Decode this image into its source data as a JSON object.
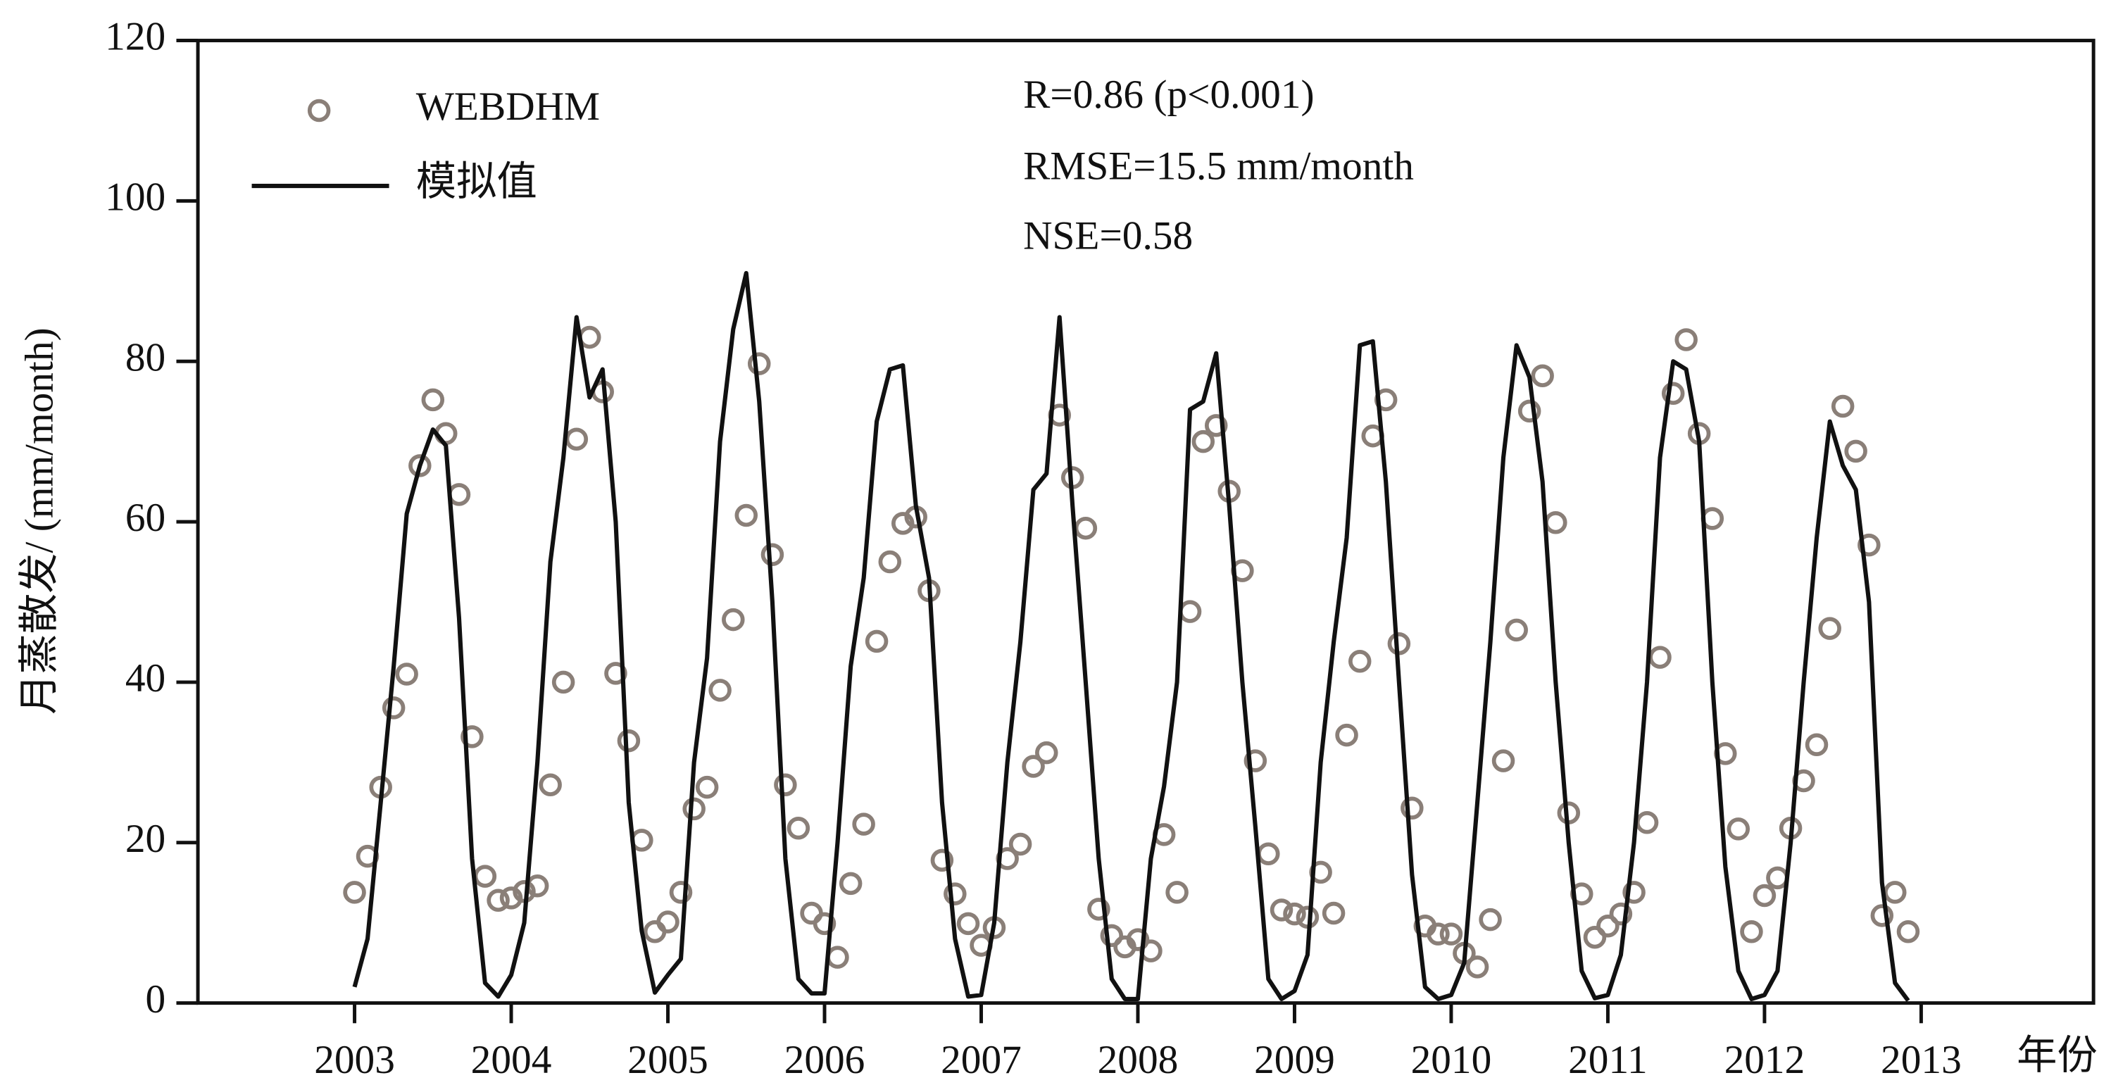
{
  "chart_data": {
    "type": "scatter",
    "ylabel": "月蒸散发/ (mm/month)",
    "xlabel": "年份",
    "annotations": [
      "R=0.86 (p<0.001)",
      "RMSE=15.5 mm/month",
      "NSE=0.58"
    ],
    "xlim": [
      2002,
      2014.1
    ],
    "xticks": [
      2003,
      2004,
      2005,
      2006,
      2007,
      2008,
      2009,
      2010,
      2011,
      2012,
      2013
    ],
    "ylim": [
      0,
      120
    ],
    "yticks": [
      0,
      20,
      40,
      60,
      80,
      100,
      120
    ],
    "legend": "upper left",
    "x": [
      2003,
      2003.083,
      2003.167,
      2003.25,
      2003.333,
      2003.417,
      2003.5,
      2003.583,
      2003.667,
      2003.75,
      2003.833,
      2003.917,
      2004,
      2004.083,
      2004.167,
      2004.25,
      2004.333,
      2004.417,
      2004.5,
      2004.583,
      2004.667,
      2004.75,
      2004.833,
      2004.917,
      2005,
      2005.083,
      2005.167,
      2005.25,
      2005.333,
      2005.417,
      2005.5,
      2005.583,
      2005.667,
      2005.75,
      2005.833,
      2005.917,
      2006,
      2006.083,
      2006.167,
      2006.25,
      2006.333,
      2006.417,
      2006.5,
      2006.583,
      2006.667,
      2006.75,
      2006.833,
      2006.917,
      2007,
      2007.083,
      2007.167,
      2007.25,
      2007.333,
      2007.417,
      2007.5,
      2007.583,
      2007.667,
      2007.75,
      2007.833,
      2007.917,
      2008,
      2008.083,
      2008.167,
      2008.25,
      2008.333,
      2008.417,
      2008.5,
      2008.583,
      2008.667,
      2008.75,
      2008.833,
      2008.917,
      2009,
      2009.083,
      2009.167,
      2009.25,
      2009.333,
      2009.417,
      2009.5,
      2009.583,
      2009.667,
      2009.75,
      2009.833,
      2009.917,
      2010,
      2010.083,
      2010.167,
      2010.25,
      2010.333,
      2010.417,
      2010.5,
      2010.583,
      2010.667,
      2010.75,
      2010.833,
      2010.917,
      2011,
      2011.083,
      2011.167,
      2011.25,
      2011.333,
      2011.417,
      2011.5,
      2011.583,
      2011.667,
      2011.75,
      2011.833,
      2011.917,
      2012,
      2012.083,
      2012.167,
      2012.25,
      2012.333,
      2012.417,
      2012.5,
      2012.583,
      2012.667,
      2012.75,
      2012.833,
      2012.917
    ],
    "series": [
      {
        "name": "WEBDHM",
        "color": "#8a7f78",
        "values": [
          13.8,
          18.3,
          26.9,
          36.8,
          41,
          67,
          75.2,
          71,
          63.4,
          33.2,
          15.8,
          12.8,
          13.1,
          13.9,
          14.6,
          27.2,
          40,
          70.3,
          83,
          76.2,
          41.1,
          32.7,
          20.3,
          8.9,
          10.1,
          13.8,
          24.2,
          26.9,
          39,
          47.8,
          60.8,
          79.7,
          55.9,
          27.2,
          21.8,
          11.2,
          9.9,
          5.7,
          14.9,
          22.3,
          45.1,
          55,
          59.8,
          60.6,
          51.4,
          17.8,
          13.6,
          9.9,
          7.2,
          9.4,
          18,
          19.8,
          29.5,
          31.2,
          73.3,
          65.5,
          59.2,
          11.7,
          8.4,
          7,
          7.9,
          6.5,
          21,
          13.8,
          48.8,
          70,
          72,
          63.8,
          53.9,
          30.2,
          18.6,
          11.6,
          11.1,
          10.7,
          16.3,
          11.2,
          33.4,
          42.6,
          70.7,
          75.2,
          44.8,
          24.3,
          9.6,
          8.6,
          8.6,
          6.2,
          4.5,
          10.4,
          30.2,
          46.5,
          73.8,
          78.2,
          59.9,
          23.7,
          13.6,
          8.2,
          9.6,
          11.1,
          13.8,
          22.5,
          43.1,
          76,
          82.7,
          71,
          60.4,
          31.1,
          21.7,
          8.9,
          13.4,
          15.6,
          21.8,
          27.7,
          32.2,
          46.7,
          74.4,
          68.8,
          57.1,
          10.9,
          13.8,
          8.9
        ]
      },
      {
        "name": "模拟值",
        "type": "line",
        "color": "#111111",
        "values": [
          2,
          8,
          25,
          42,
          61,
          67,
          71.5,
          69.5,
          48,
          18,
          2.5,
          0.8,
          3.5,
          10,
          30,
          55,
          68,
          85.5,
          75.5,
          79,
          60,
          25,
          9,
          1.3,
          3.5,
          5.5,
          30,
          43,
          70,
          84,
          91,
          75,
          50,
          18,
          3,
          1.2,
          1.2,
          20,
          42,
          53,
          72.5,
          79,
          79.5,
          62,
          53,
          25,
          8,
          0.8,
          1,
          10,
          30,
          45,
          64,
          66,
          85.5,
          62,
          40,
          18,
          3,
          0.5,
          0.5,
          18,
          27,
          40,
          74,
          75,
          81,
          62,
          40,
          22,
          3,
          0.5,
          1.5,
          6,
          30,
          45,
          58,
          82,
          82.5,
          65,
          40,
          16,
          2,
          0.5,
          1,
          5,
          25,
          45,
          68,
          82,
          78,
          65,
          40,
          20,
          4,
          0.6,
          1,
          6,
          20,
          40,
          68,
          80,
          79,
          70,
          40,
          17,
          4,
          0.5,
          1,
          4,
          20,
          40,
          58,
          72.5,
          67,
          64,
          50,
          15,
          2.5,
          0.3
        ]
      }
    ]
  }
}
